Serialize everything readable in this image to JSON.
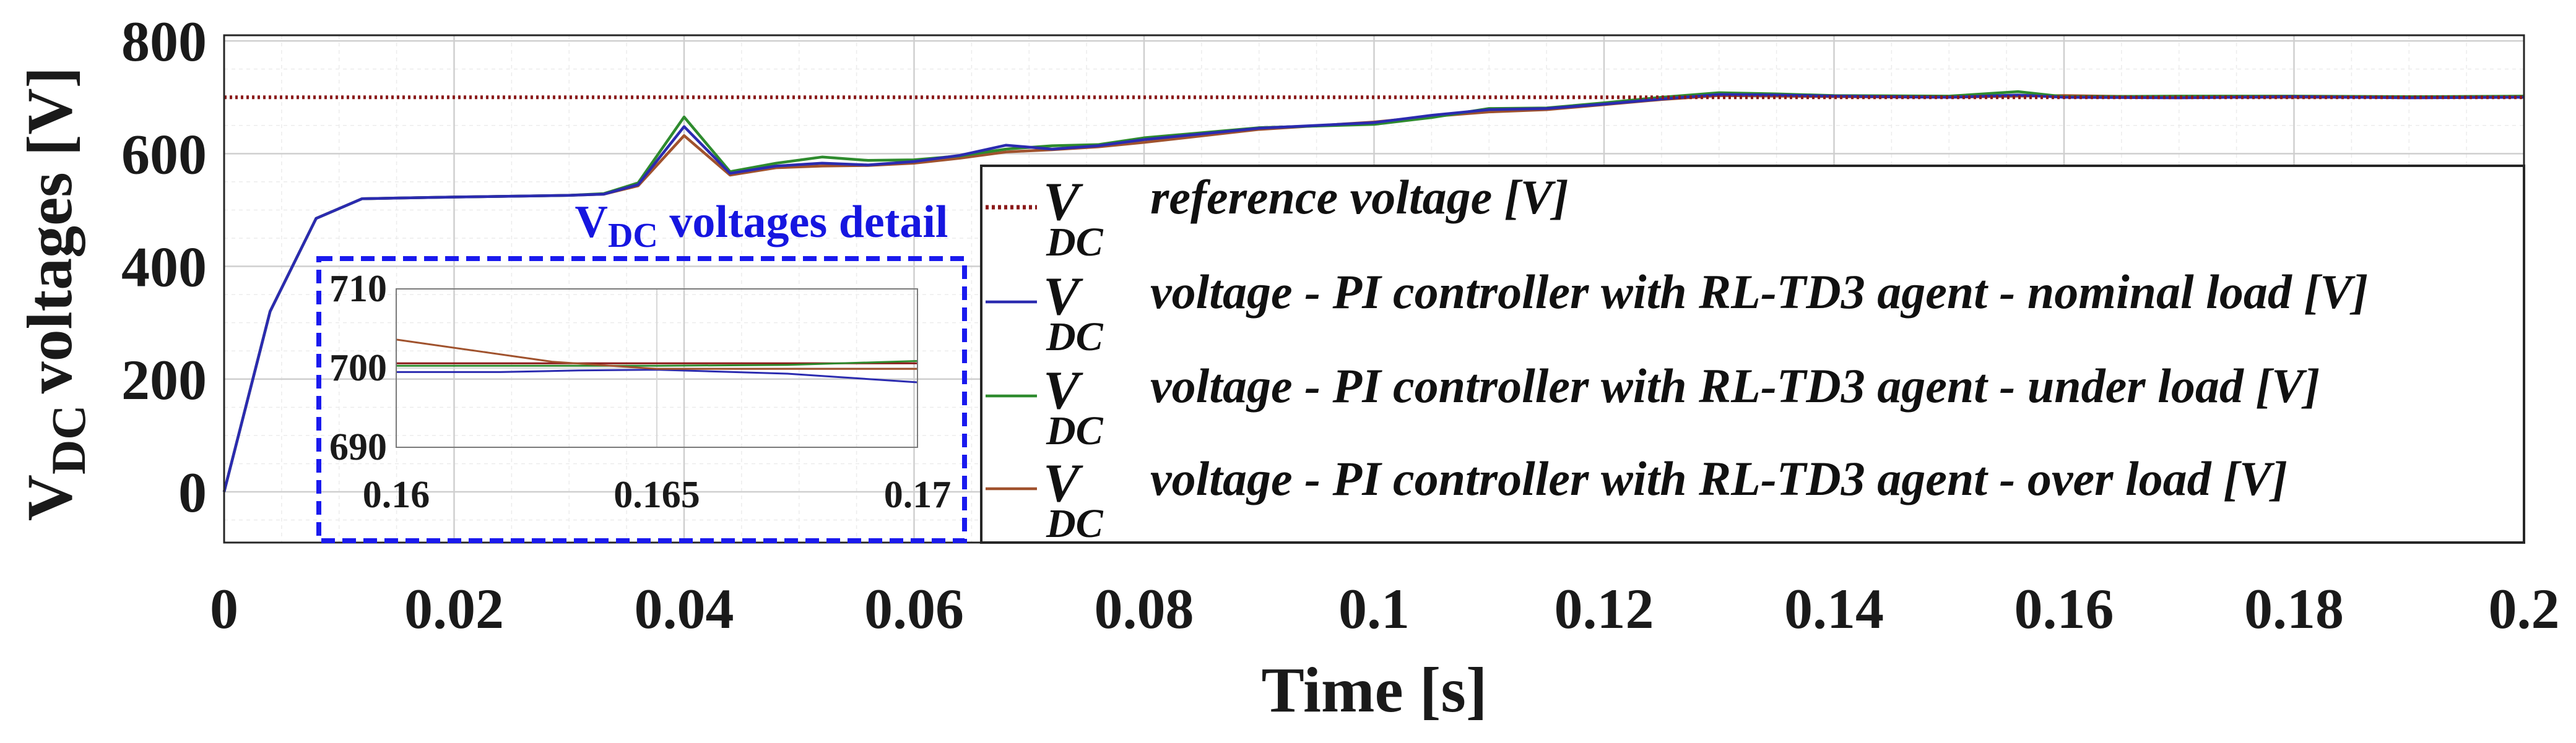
{
  "chart_data": {
    "type": "line",
    "xlabel": "Time [s]",
    "ylabel_main": "V",
    "ylabel_sub": "DC",
    "ylabel_rest": "voltages [V]",
    "xlim": [
      0,
      0.2
    ],
    "ylim": [
      -90,
      810
    ],
    "x_ticks": [
      "0",
      "0.02",
      "0.04",
      "0.06",
      "0.08",
      "0.1",
      "0.12",
      "0.14",
      "0.16",
      "0.18",
      "0.2"
    ],
    "x_tick_values": [
      0,
      0.02,
      0.04,
      0.06,
      0.08,
      0.1,
      0.12,
      0.14,
      0.16,
      0.18,
      0.2
    ],
    "y_ticks": [
      "0",
      "200",
      "400",
      "600",
      "800"
    ],
    "y_tick_values": [
      0,
      200,
      400,
      600,
      800
    ],
    "grid": true,
    "legend_position": "right",
    "series": [
      {
        "name": "reference voltage [V]",
        "legend_symbol": "V",
        "legend_sub": "DC",
        "color": "#8b1a1a",
        "style": "dotted",
        "x": [
          0,
          0.2
        ],
        "values": [
          700,
          700
        ]
      },
      {
        "name": "voltage - PI controller with RL-TD3 agent - nominal load  [V]",
        "legend_symbol": "V",
        "legend_sub": "DC",
        "color": "#2b2bb0",
        "style": "solid",
        "x": [
          0,
          0.004,
          0.008,
          0.012,
          0.02,
          0.03,
          0.033,
          0.036,
          0.04,
          0.044,
          0.048,
          0.052,
          0.056,
          0.06,
          0.064,
          0.068,
          0.072,
          0.076,
          0.08,
          0.09,
          0.1,
          0.105,
          0.11,
          0.115,
          0.12,
          0.125,
          0.13,
          0.135,
          0.14,
          0.15,
          0.156,
          0.16,
          0.17,
          0.18,
          0.19,
          0.2
        ],
        "values": [
          0,
          320,
          485,
          520,
          523,
          526,
          528,
          545,
          648,
          565,
          578,
          583,
          580,
          586,
          597,
          615,
          608,
          614,
          625,
          645,
          655,
          668,
          678,
          680,
          688,
          697,
          705,
          704,
          702,
          700,
          704,
          700,
          699,
          701,
          699,
          700
        ]
      },
      {
        "name": "voltage - PI controller with RL-TD3 agent - under load  [V]",
        "legend_symbol": "V",
        "legend_sub": "DC",
        "color": "#2e8b2e",
        "style": "solid",
        "x": [
          0,
          0.004,
          0.008,
          0.012,
          0.02,
          0.03,
          0.033,
          0.036,
          0.04,
          0.044,
          0.048,
          0.052,
          0.056,
          0.06,
          0.064,
          0.068,
          0.072,
          0.076,
          0.08,
          0.09,
          0.1,
          0.105,
          0.11,
          0.115,
          0.12,
          0.125,
          0.13,
          0.135,
          0.14,
          0.15,
          0.156,
          0.16,
          0.17,
          0.18,
          0.19,
          0.2
        ],
        "values": [
          0,
          320,
          485,
          520,
          523,
          526,
          529,
          548,
          665,
          568,
          583,
          594,
          588,
          589,
          596,
          608,
          614,
          616,
          628,
          646,
          652,
          664,
          680,
          681,
          690,
          700,
          708,
          706,
          703,
          702,
          710,
          701,
          702,
          702,
          701,
          702
        ]
      },
      {
        "name": "voltage - PI controller with RL-TD3 agent - over load  [V]",
        "legend_symbol": "V",
        "legend_sub": "DC",
        "color": "#a0522d",
        "style": "solid",
        "x": [
          0,
          0.004,
          0.008,
          0.012,
          0.02,
          0.03,
          0.033,
          0.036,
          0.04,
          0.044,
          0.048,
          0.052,
          0.056,
          0.06,
          0.064,
          0.068,
          0.072,
          0.076,
          0.08,
          0.09,
          0.1,
          0.105,
          0.11,
          0.115,
          0.12,
          0.125,
          0.13,
          0.135,
          0.14,
          0.15,
          0.156,
          0.16,
          0.17,
          0.18,
          0.19,
          0.2
        ],
        "values": [
          0,
          320,
          485,
          520,
          523,
          526,
          528,
          543,
          632,
          562,
          575,
          578,
          579,
          583,
          592,
          603,
          607,
          612,
          620,
          643,
          656,
          666,
          674,
          678,
          687,
          696,
          703,
          702,
          701,
          700,
          702,
          703,
          700,
          700,
          700,
          700
        ]
      }
    ],
    "inset": {
      "title_main": "V",
      "title_sub": "DC",
      "title_rest": " voltages detail",
      "xlim": [
        0.16,
        0.17
      ],
      "ylim": [
        690,
        710
      ],
      "x_ticks": [
        "0.16",
        "0.165",
        "0.17"
      ],
      "x_tick_values": [
        0.16,
        0.165,
        0.17
      ],
      "y_ticks": [
        "690",
        "700",
        "710"
      ],
      "y_tick_values": [
        690,
        700,
        710
      ],
      "series": [
        {
          "name": "reference",
          "color": "#8b1a1a",
          "x": [
            0.16,
            0.17
          ],
          "values": [
            700.6,
            700.6
          ]
        },
        {
          "name": "nominal load",
          "color": "#2b2bb0",
          "x": [
            0.16,
            0.162,
            0.1635,
            0.165,
            0.1675,
            0.17
          ],
          "values": [
            699.5,
            699.5,
            699.7,
            699.8,
            699.3,
            698.2
          ]
        },
        {
          "name": "under load",
          "color": "#2e8b2e",
          "x": [
            0.16,
            0.163,
            0.165,
            0.1675,
            0.17
          ],
          "values": [
            700.3,
            700.3,
            700.3,
            700.4,
            700.9
          ]
        },
        {
          "name": "over load",
          "color": "#a0522d",
          "x": [
            0.16,
            0.1615,
            0.163,
            0.165,
            0.1675,
            0.17
          ],
          "values": [
            703.6,
            702.2,
            700.8,
            699.9,
            699.9,
            699.9
          ]
        }
      ]
    }
  }
}
